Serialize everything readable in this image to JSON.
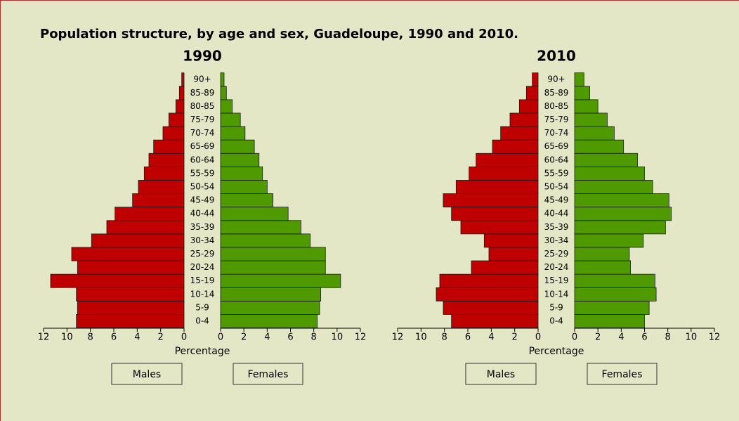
{
  "title": "Population structure, by age and sex, Guadeloupe, 1990 and 2010.",
  "chart_data": [
    {
      "type": "pyramid",
      "title": "1990",
      "xlabel": "Percentage",
      "categories": [
        "0-4",
        "5-9",
        "10-14",
        "15-19",
        "20-24",
        "25-29",
        "30-34",
        "35-39",
        "40-44",
        "45-49",
        "50-54",
        "55-59",
        "60-64",
        "65-69",
        "70-74",
        "75-79",
        "80-85",
        "85-89",
        "90+"
      ],
      "series": [
        {
          "name": "Males",
          "color": "#bf0000",
          "values": [
            9.2,
            9.1,
            9.2,
            11.4,
            9.1,
            9.6,
            7.9,
            6.6,
            5.9,
            4.4,
            3.9,
            3.4,
            3.0,
            2.6,
            1.8,
            1.3,
            0.7,
            0.4,
            0.2
          ]
        },
        {
          "name": "Females",
          "color": "#4f9a00",
          "values": [
            8.3,
            8.5,
            8.6,
            10.3,
            9.0,
            9.0,
            7.7,
            6.9,
            5.8,
            4.5,
            4.0,
            3.6,
            3.3,
            2.9,
            2.1,
            1.7,
            1.0,
            0.5,
            0.3
          ]
        }
      ],
      "xlim": [
        0,
        12
      ],
      "xticks": [
        0,
        2,
        4,
        6,
        8,
        10,
        12
      ]
    },
    {
      "type": "pyramid",
      "title": "2010",
      "xlabel": "Percentage",
      "categories": [
        "0-4",
        "5-9",
        "10-14",
        "15-19",
        "20-24",
        "25-29",
        "30-34",
        "35-39",
        "40-44",
        "45-49",
        "50-54",
        "55-59",
        "60-64",
        "65-69",
        "70-74",
        "75-79",
        "80-85",
        "85-89",
        "90+"
      ],
      "series": [
        {
          "name": "Males",
          "color": "#bf0000",
          "values": [
            7.4,
            8.1,
            8.7,
            8.4,
            5.7,
            4.2,
            4.6,
            6.6,
            7.4,
            8.1,
            7.0,
            5.9,
            5.3,
            3.9,
            3.2,
            2.4,
            1.6,
            1.0,
            0.5
          ]
        },
        {
          "name": "Females",
          "color": "#4f9a00",
          "values": [
            6.0,
            6.4,
            7.0,
            6.9,
            4.8,
            4.7,
            5.9,
            7.8,
            8.3,
            8.1,
            6.7,
            6.0,
            5.4,
            4.2,
            3.4,
            2.8,
            2.0,
            1.3,
            0.8
          ]
        }
      ],
      "xlim": [
        0,
        12
      ],
      "xticks": [
        0,
        2,
        4,
        6,
        8,
        10,
        12
      ]
    }
  ]
}
